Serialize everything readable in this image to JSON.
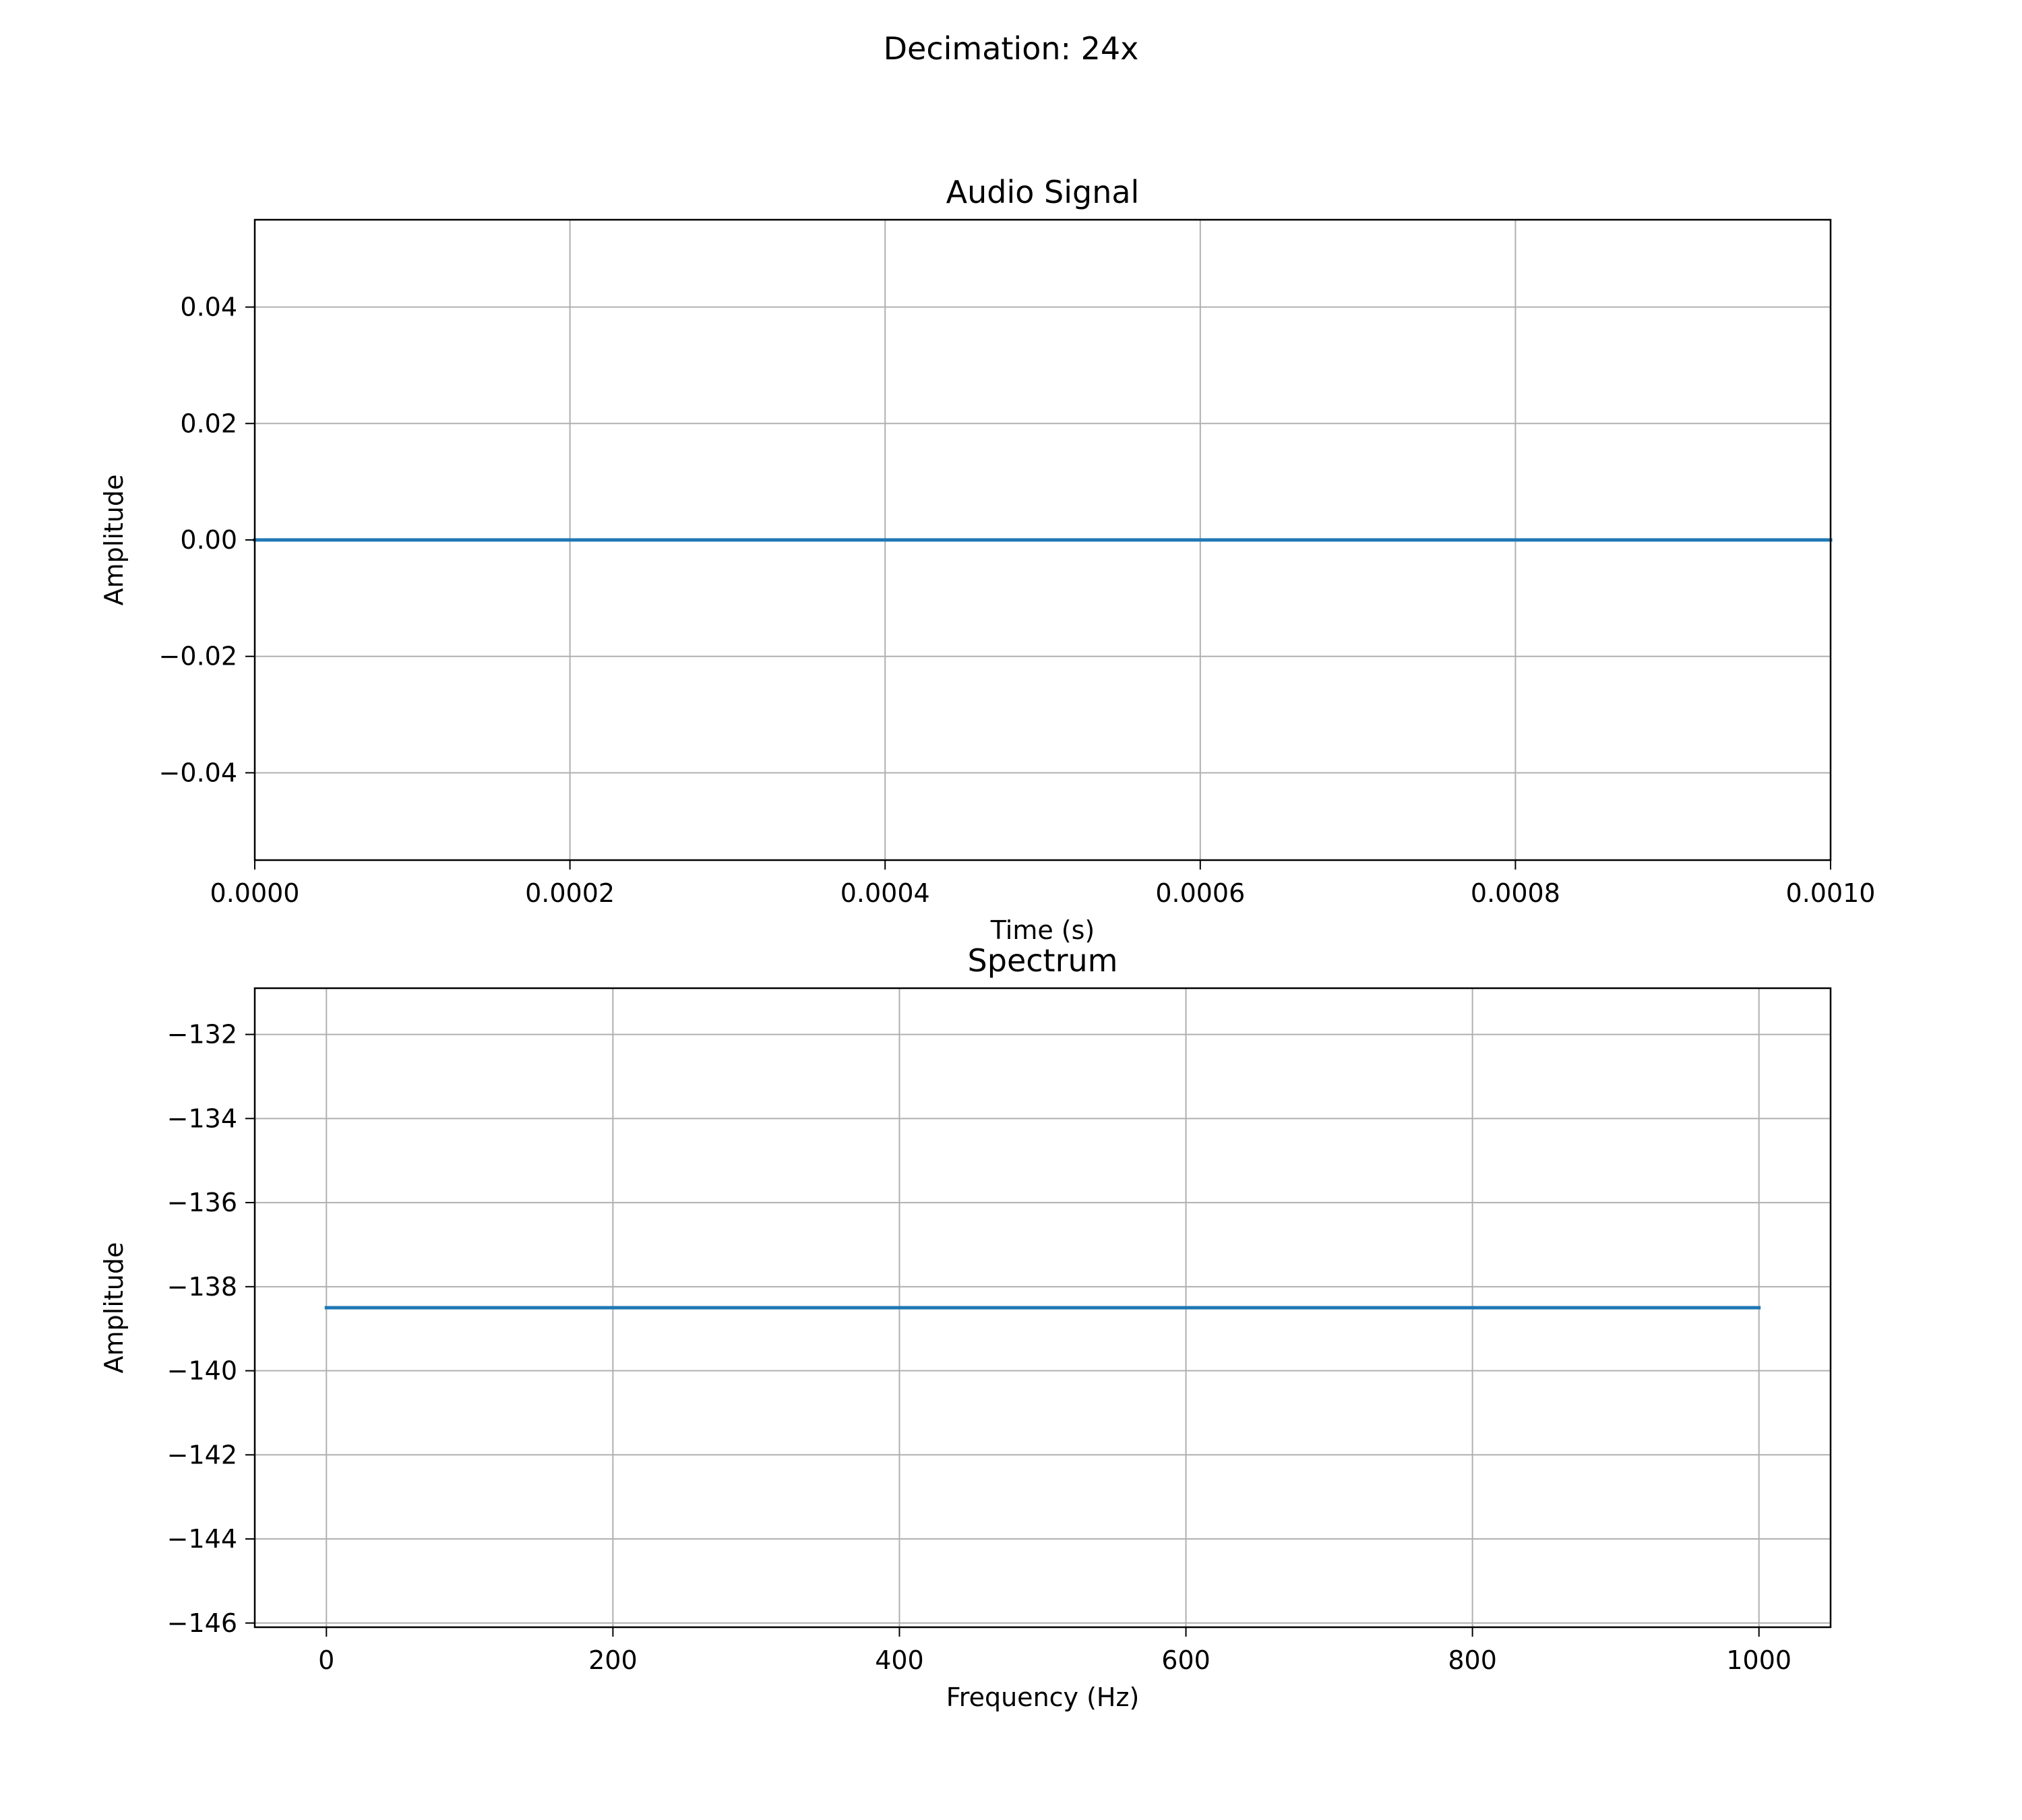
{
  "figure": {
    "suptitle": "Decimation: 24x"
  },
  "chart_data": [
    {
      "type": "line",
      "title": "Audio Signal",
      "xlabel": "Time (s)",
      "ylabel": "Amplitude",
      "xlim": [
        0.0,
        0.001
      ],
      "ylim": [
        -0.055,
        0.055
      ],
      "xticks": [
        {
          "value": 0.0,
          "label": "0.0000"
        },
        {
          "value": 0.0002,
          "label": "0.0002"
        },
        {
          "value": 0.0004,
          "label": "0.0004"
        },
        {
          "value": 0.0006,
          "label": "0.0006"
        },
        {
          "value": 0.0008,
          "label": "0.0008"
        },
        {
          "value": 0.001,
          "label": "0.0010"
        }
      ],
      "yticks": [
        {
          "value": 0.04,
          "label": "0.04"
        },
        {
          "value": 0.02,
          "label": "0.02"
        },
        {
          "value": 0.0,
          "label": "0.00"
        },
        {
          "value": -0.02,
          "label": "−0.02"
        },
        {
          "value": -0.04,
          "label": "−0.04"
        }
      ],
      "grid": true,
      "series": [
        {
          "color": "#1f77b4",
          "x": [
            0.0,
            0.001
          ],
          "y": [
            0.0,
            0.0
          ]
        }
      ]
    },
    {
      "type": "line",
      "title": "Spectrum",
      "xlabel": "Frequency (Hz)",
      "ylabel": "Amplitude",
      "xlim": [
        -50,
        1050
      ],
      "ylim": [
        -146.1,
        -130.9
      ],
      "xticks": [
        {
          "value": 0,
          "label": "0"
        },
        {
          "value": 200,
          "label": "200"
        },
        {
          "value": 400,
          "label": "400"
        },
        {
          "value": 600,
          "label": "600"
        },
        {
          "value": 800,
          "label": "800"
        },
        {
          "value": 1000,
          "label": "1000"
        }
      ],
      "yticks": [
        {
          "value": -132,
          "label": "−132"
        },
        {
          "value": -134,
          "label": "−134"
        },
        {
          "value": -136,
          "label": "−136"
        },
        {
          "value": -138,
          "label": "−138"
        },
        {
          "value": -140,
          "label": "−140"
        },
        {
          "value": -142,
          "label": "−142"
        },
        {
          "value": -144,
          "label": "−144"
        },
        {
          "value": -146,
          "label": "−146"
        }
      ],
      "grid": true,
      "series": [
        {
          "color": "#1f77b4",
          "x": [
            0,
            1000
          ],
          "y": [
            -138.5,
            -138.5
          ]
        }
      ]
    }
  ]
}
